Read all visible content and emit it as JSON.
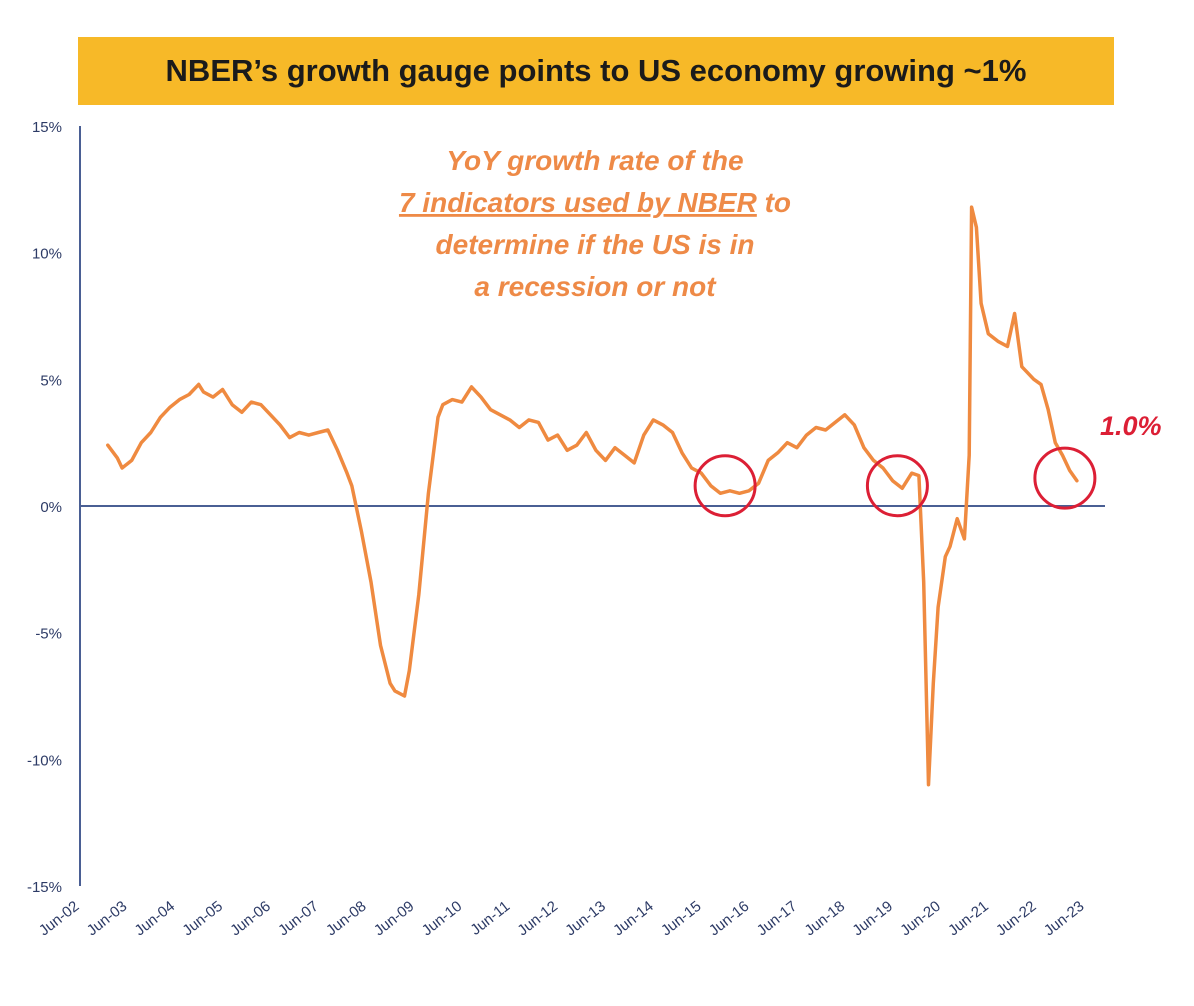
{
  "colors": {
    "banner": "#f7b928",
    "line": "#ef8a40",
    "axis": "#4a5f94",
    "annotation": "#ee8a47",
    "highlight": "#dc1f35"
  },
  "chart_data": {
    "type": "line",
    "title": "NBER’s growth gauge points to US economy growing ~1%",
    "annotation_lines": [
      "YoY growth rate of the",
      "7 indicators used by NBER",
      " to",
      "determine if the US is in",
      "a recession or not"
    ],
    "end_label": "1.0%",
    "ylim": [
      -15,
      15
    ],
    "y_ticks": [
      15,
      10,
      5,
      0,
      -5,
      -10,
      -15
    ],
    "y_tick_labels": [
      "15%",
      "10%",
      "5%",
      "0%",
      "-5%",
      "-10%",
      "-15%"
    ],
    "x_range": [
      2002.42,
      2023.42
    ],
    "x_tick_values": [
      2002.42,
      2003.42,
      2004.42,
      2005.42,
      2006.42,
      2007.42,
      2008.42,
      2009.42,
      2010.42,
      2011.42,
      2012.42,
      2013.42,
      2014.42,
      2015.42,
      2016.42,
      2017.42,
      2018.42,
      2019.42,
      2020.42,
      2021.42,
      2022.42,
      2023.42
    ],
    "x_tick_labels": [
      "Jun-02",
      "Jun-03",
      "Jun-04",
      "Jun-05",
      "Jun-06",
      "Jun-07",
      "Jun-08",
      "Jun-09",
      "Jun-10",
      "Jun-11",
      "Jun-12",
      "Jun-13",
      "Jun-14",
      "Jun-15",
      "Jun-16",
      "Jun-17",
      "Jun-18",
      "Jun-19",
      "Jun-20",
      "Jun-21",
      "Jun-22",
      "Jun-23"
    ],
    "series": [
      {
        "name": "YoY growth rate of the 7 NBER indicators",
        "x": [
          2003.0,
          2003.2,
          2003.3,
          2003.5,
          2003.7,
          2003.9,
          2004.1,
          2004.3,
          2004.5,
          2004.7,
          2004.9,
          2005.0,
          2005.2,
          2005.4,
          2005.6,
          2005.8,
          2006.0,
          2006.2,
          2006.4,
          2006.6,
          2006.8,
          2007.0,
          2007.2,
          2007.4,
          2007.6,
          2007.8,
          2008.0,
          2008.1,
          2008.3,
          2008.5,
          2008.7,
          2008.9,
          2009.0,
          2009.2,
          2009.3,
          2009.5,
          2009.7,
          2009.9,
          2010.0,
          2010.2,
          2010.4,
          2010.6,
          2010.8,
          2011.0,
          2011.2,
          2011.4,
          2011.6,
          2011.8,
          2012.0,
          2012.2,
          2012.4,
          2012.6,
          2012.8,
          2013.0,
          2013.2,
          2013.4,
          2013.6,
          2013.8,
          2014.0,
          2014.2,
          2014.4,
          2014.6,
          2014.8,
          2015.0,
          2015.2,
          2015.4,
          2015.6,
          2015.8,
          2016.0,
          2016.2,
          2016.4,
          2016.6,
          2016.8,
          2017.0,
          2017.2,
          2017.4,
          2017.6,
          2017.8,
          2018.0,
          2018.2,
          2018.4,
          2018.6,
          2018.8,
          2019.0,
          2019.2,
          2019.4,
          2019.6,
          2019.8,
          2019.95,
          2020.05,
          2020.15,
          2020.25,
          2020.35,
          2020.5,
          2020.6,
          2020.75,
          2020.9,
          2021.0,
          2021.05,
          2021.15,
          2021.25,
          2021.4,
          2021.6,
          2021.8,
          2021.95,
          2022.1,
          2022.2,
          2022.35,
          2022.5,
          2022.65,
          2022.8,
          2022.95,
          2023.1,
          2023.25
        ],
        "y": [
          2.4,
          1.9,
          1.5,
          1.8,
          2.5,
          2.9,
          3.5,
          3.9,
          4.2,
          4.4,
          4.8,
          4.5,
          4.3,
          4.6,
          4.0,
          3.7,
          4.1,
          4.0,
          3.6,
          3.2,
          2.7,
          2.9,
          2.8,
          2.9,
          3.0,
          2.2,
          1.3,
          0.8,
          -1.0,
          -3.0,
          -5.5,
          -7.0,
          -7.3,
          -7.5,
          -6.5,
          -3.5,
          0.5,
          3.5,
          4.0,
          4.2,
          4.1,
          4.7,
          4.3,
          3.8,
          3.6,
          3.4,
          3.1,
          3.4,
          3.3,
          2.6,
          2.8,
          2.2,
          2.4,
          2.9,
          2.2,
          1.8,
          2.3,
          2.0,
          1.7,
          2.8,
          3.4,
          3.2,
          2.9,
          2.1,
          1.5,
          1.3,
          0.8,
          0.5,
          0.6,
          0.5,
          0.6,
          0.9,
          1.8,
          2.1,
          2.5,
          2.3,
          2.8,
          3.1,
          3.0,
          3.3,
          3.6,
          3.2,
          2.3,
          1.8,
          1.5,
          1.0,
          0.7,
          1.3,
          1.2,
          -3.0,
          -11.0,
          -7.0,
          -4.0,
          -2.0,
          -1.6,
          -0.5,
          -1.3,
          2.0,
          11.8,
          11.0,
          8.0,
          6.8,
          6.5,
          6.3,
          7.6,
          5.5,
          5.3,
          5.0,
          4.8,
          3.8,
          2.5,
          2.0,
          1.4,
          1.0
        ]
      }
    ],
    "highlights": [
      {
        "x": 2015.9,
        "y": 0.8
      },
      {
        "x": 2019.5,
        "y": 0.8
      },
      {
        "x": 2023.0,
        "y": 1.1
      }
    ]
  }
}
